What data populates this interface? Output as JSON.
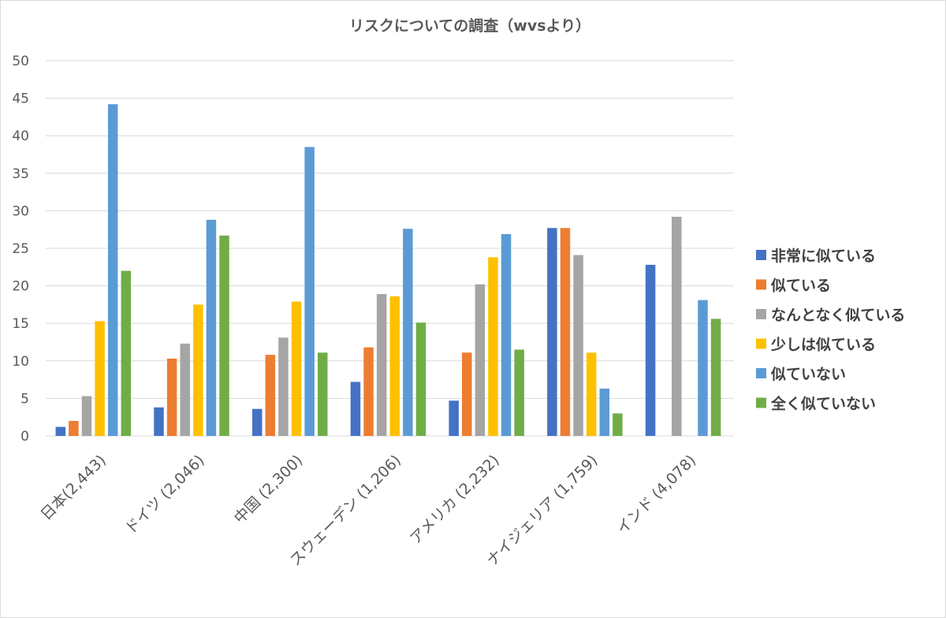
{
  "chart_data": {
    "type": "bar",
    "title": "リスクについての調査（wvsより）",
    "xlabel": "",
    "ylabel": "",
    "ylim": [
      0,
      50
    ],
    "yticks": [
      0,
      5,
      10,
      15,
      20,
      25,
      30,
      35,
      40,
      45,
      50
    ],
    "grid": true,
    "legend_position": "right",
    "categories": [
      "日本(2,443)",
      "ドイツ (2,046)",
      "中国 (2,300)",
      "スウェーデン (1,206)",
      "アメリカ (2,232)",
      "ナイジェリア (1,759)",
      "インド (4,078)"
    ],
    "series": [
      {
        "name": "非常に似ている",
        "color": "#4472c4",
        "values": [
          1.2,
          3.8,
          3.6,
          7.2,
          4.7,
          27.7,
          22.8
        ]
      },
      {
        "name": "似ている",
        "color": "#ed7d31",
        "values": [
          2.0,
          10.3,
          10.8,
          11.8,
          11.1,
          27.7,
          null
        ]
      },
      {
        "name": "なんとなく似ている",
        "color": "#a5a5a5",
        "values": [
          5.3,
          12.3,
          13.1,
          18.9,
          20.2,
          24.1,
          29.2
        ]
      },
      {
        "name": "少しは似ている",
        "color": "#ffc000",
        "values": [
          15.3,
          17.5,
          17.9,
          18.6,
          23.8,
          11.1,
          null
        ]
      },
      {
        "name": "似ていない",
        "color": "#5b9bd5",
        "values": [
          44.2,
          28.8,
          38.5,
          27.6,
          26.9,
          6.3,
          18.1
        ]
      },
      {
        "name": "全く似ていない",
        "color": "#70ad47",
        "values": [
          22.0,
          26.7,
          11.1,
          15.1,
          11.5,
          3.0,
          15.6
        ]
      }
    ]
  }
}
